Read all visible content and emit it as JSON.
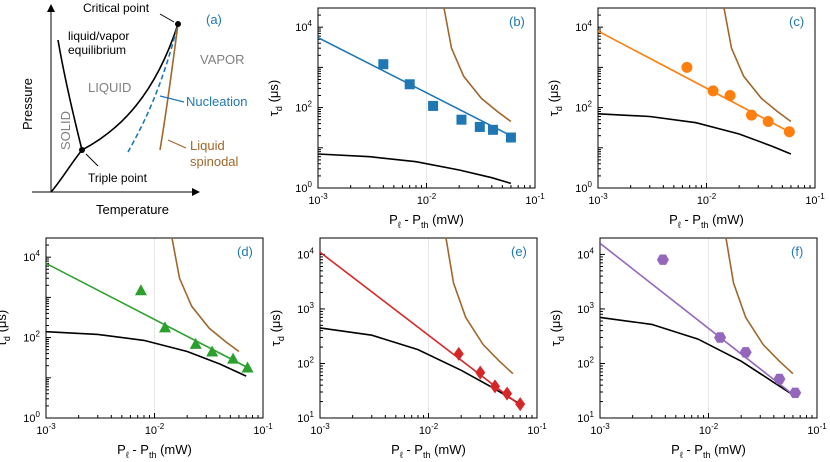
{
  "phase_diagram": {
    "tag": "(a)",
    "ylabel": "Pressure",
    "xlabel": "Temperature",
    "labels": {
      "critical_point": "Critical point",
      "equilibrium_line1": "liquid/vapor",
      "equilibrium_line2": "equilibrium",
      "liquid": "LIQUID",
      "vapor": "VAPOR",
      "solid": "SOLID",
      "nucleation": "Nucleation",
      "spinodal_line1": "Liquid",
      "spinodal_line2": "spinodal",
      "triple_point": "Triple point"
    },
    "colors": {
      "nucleation": "#1f77b4",
      "spinodal": "#a0672a",
      "phase_text": "#808080"
    }
  },
  "chart_data": [
    {
      "panel": "(b)",
      "type": "scatter",
      "color": "#1f77b4",
      "marker": "square",
      "xlabel": "P_ℓ - P_th (mW)",
      "ylabel": "τ_d (μs)",
      "xscale": "log",
      "yscale": "log",
      "xlim": [
        0.001,
        0.1
      ],
      "ylim": [
        1,
        30000
      ],
      "xticks": [
        "10-3",
        "10-2",
        "10-1"
      ],
      "yticks": [
        "100",
        "102",
        "104"
      ],
      "points": {
        "x": [
          0.004,
          0.007,
          0.0115,
          0.021,
          0.031,
          0.041,
          0.06
        ],
        "y": [
          1200,
          380,
          110,
          50,
          33,
          28,
          18
        ]
      },
      "fit_line": {
        "x": [
          0.001,
          0.06
        ],
        "y": [
          5500,
          20
        ]
      },
      "spinodal_curve": {
        "x": [
          0.0145,
          0.017,
          0.022,
          0.032,
          0.045,
          0.06
        ],
        "y": [
          30000,
          3000,
          600,
          170,
          80,
          45
        ]
      },
      "black_curve": {
        "x": [
          0.001,
          0.003,
          0.008,
          0.02,
          0.04,
          0.06
        ],
        "y": [
          7,
          6,
          4.5,
          2.8,
          1.8,
          1.3
        ]
      }
    },
    {
      "panel": "(c)",
      "type": "scatter",
      "color": "#ff7f0e",
      "marker": "circle",
      "xlabel": "P_ℓ - P_th (mW)",
      "ylabel": "τ_d (μs)",
      "xscale": "log",
      "yscale": "log",
      "xlim": [
        0.001,
        0.1
      ],
      "ylim": [
        1,
        30000
      ],
      "xticks": [
        "10-3",
        "10-2",
        "10-1"
      ],
      "yticks": [
        "100",
        "102",
        "104"
      ],
      "points": {
        "x": [
          0.0066,
          0.0115,
          0.0165,
          0.026,
          0.037,
          0.058
        ],
        "y": [
          1000,
          260,
          200,
          65,
          45,
          25
        ]
      },
      "fit_line": {
        "x": [
          0.001,
          0.058
        ],
        "y": [
          8000,
          25
        ]
      },
      "spinodal_curve": {
        "x": [
          0.0145,
          0.017,
          0.022,
          0.032,
          0.045,
          0.06
        ],
        "y": [
          30000,
          3000,
          600,
          170,
          80,
          45
        ]
      },
      "black_curve": {
        "x": [
          0.001,
          0.003,
          0.008,
          0.02,
          0.04,
          0.06
        ],
        "y": [
          70,
          60,
          42,
          22,
          11,
          7
        ]
      }
    },
    {
      "panel": "(d)",
      "type": "scatter",
      "color": "#2ca02c",
      "marker": "triangle",
      "xlabel": "P_ℓ - P_th (mW)",
      "ylabel": "τ_d (μs)",
      "xscale": "log",
      "yscale": "log",
      "xlim": [
        0.001,
        0.1
      ],
      "ylim": [
        1,
        30000
      ],
      "xticks": [
        "10-3",
        "10-2",
        "10-1"
      ],
      "yticks": [
        "100",
        "102",
        "104"
      ],
      "points": {
        "x": [
          0.0075,
          0.0125,
          0.024,
          0.034,
          0.053,
          0.072
        ],
        "y": [
          1500,
          180,
          70,
          45,
          30,
          18
        ]
      },
      "fit_line": {
        "x": [
          0.001,
          0.072
        ],
        "y": [
          7000,
          18
        ]
      },
      "spinodal_curve": {
        "x": [
          0.0145,
          0.017,
          0.022,
          0.032,
          0.045,
          0.06
        ],
        "y": [
          30000,
          3000,
          600,
          170,
          80,
          45
        ]
      },
      "black_curve": {
        "x": [
          0.001,
          0.003,
          0.008,
          0.02,
          0.04,
          0.07
        ],
        "y": [
          140,
          120,
          85,
          45,
          22,
          11
        ]
      }
    },
    {
      "panel": "(e)",
      "type": "scatter",
      "color": "#d62728",
      "marker": "diamond",
      "xlabel": "P_ℓ - P_th (mW)",
      "ylabel": "τ_d (μs)",
      "xscale": "log",
      "yscale": "log",
      "xlim": [
        0.001,
        0.1
      ],
      "ylim": [
        10,
        20000
      ],
      "xticks": [
        "10-3",
        "10-2",
        "10-1"
      ],
      "yticks": [
        "101",
        "102",
        "103",
        "104"
      ],
      "points": {
        "x": [
          0.019,
          0.03,
          0.041,
          0.053,
          0.07
        ],
        "y": [
          150,
          68,
          38,
          28,
          18
        ]
      },
      "fit_line": {
        "x": [
          0.001,
          0.07
        ],
        "y": [
          11000,
          17
        ]
      },
      "spinodal_curve": {
        "x": [
          0.0145,
          0.017,
          0.022,
          0.032,
          0.045,
          0.06
        ],
        "y": [
          20000,
          3000,
          700,
          220,
          110,
          65
        ]
      },
      "black_curve": {
        "x": [
          0.001,
          0.003,
          0.008,
          0.02,
          0.04,
          0.07
        ],
        "y": [
          450,
          330,
          180,
          75,
          35,
          18
        ]
      }
    },
    {
      "panel": "(f)",
      "type": "scatter",
      "color": "#9467bd",
      "marker": "hexagon",
      "xlabel": "P_ℓ - P_th (mW)",
      "ylabel": "τ_d (μs)",
      "xscale": "log",
      "yscale": "log",
      "xlim": [
        0.001,
        0.1
      ],
      "ylim": [
        10,
        20000
      ],
      "xticks": [
        "10-3",
        "10-2",
        "10-1"
      ],
      "yticks": [
        "101",
        "102",
        "103",
        "104"
      ],
      "points": {
        "x": [
          0.0038,
          0.0128,
          0.022,
          0.045,
          0.063
        ],
        "y": [
          8000,
          300,
          160,
          52,
          29
        ]
      },
      "fit_line": {
        "x": [
          0.001,
          0.063
        ],
        "y": [
          16000,
          25
        ]
      },
      "spinodal_curve": {
        "x": [
          0.0145,
          0.017,
          0.022,
          0.032,
          0.045,
          0.06
        ],
        "y": [
          20000,
          3000,
          700,
          220,
          110,
          65
        ]
      },
      "black_curve": {
        "x": [
          0.001,
          0.003,
          0.008,
          0.02,
          0.04,
          0.063
        ],
        "y": [
          700,
          520,
          280,
          110,
          45,
          25
        ]
      }
    }
  ],
  "colors": {
    "spinodal_curve": "#a0672a",
    "black_curve": "#000000",
    "ytick_grid": "#e6e6e6"
  }
}
